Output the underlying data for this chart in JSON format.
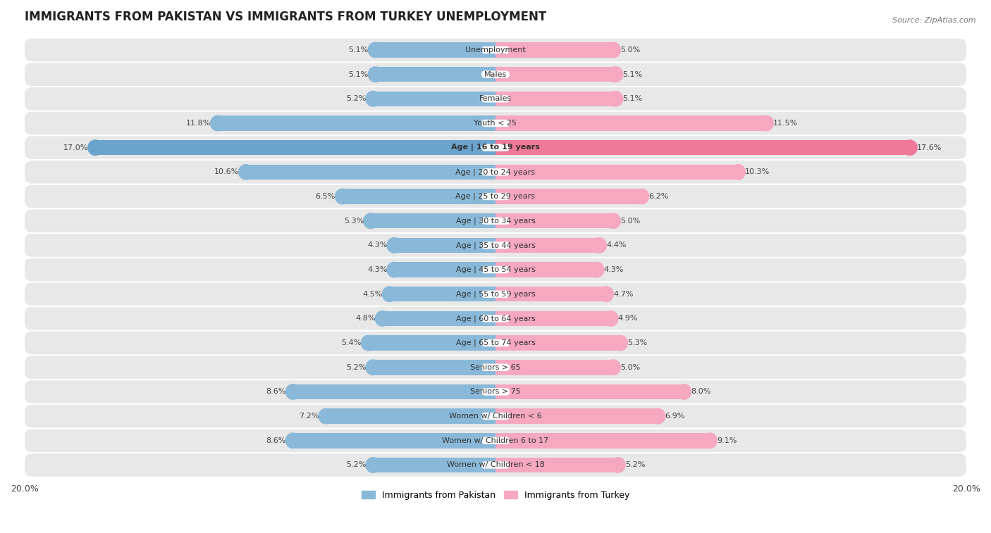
{
  "title": "IMMIGRANTS FROM PAKISTAN VS IMMIGRANTS FROM TURKEY UNEMPLOYMENT",
  "source": "Source: ZipAtlas.com",
  "categories": [
    "Unemployment",
    "Males",
    "Females",
    "Youth < 25",
    "Age | 16 to 19 years",
    "Age | 20 to 24 years",
    "Age | 25 to 29 years",
    "Age | 30 to 34 years",
    "Age | 35 to 44 years",
    "Age | 45 to 54 years",
    "Age | 55 to 59 years",
    "Age | 60 to 64 years",
    "Age | 65 to 74 years",
    "Seniors > 65",
    "Seniors > 75",
    "Women w/ Children < 6",
    "Women w/ Children 6 to 17",
    "Women w/ Children < 18"
  ],
  "pakistan_values": [
    5.1,
    5.1,
    5.2,
    11.8,
    17.0,
    10.6,
    6.5,
    5.3,
    4.3,
    4.3,
    4.5,
    4.8,
    5.4,
    5.2,
    8.6,
    7.2,
    8.6,
    5.2
  ],
  "turkey_values": [
    5.0,
    5.1,
    5.1,
    11.5,
    17.6,
    10.3,
    6.2,
    5.0,
    4.4,
    4.3,
    4.7,
    4.9,
    5.3,
    5.0,
    8.0,
    6.9,
    9.1,
    5.2
  ],
  "pakistan_color": "#89b8d8",
  "turkey_color": "#f5a8c0",
  "pakistan_highlight_color": "#6aa3cc",
  "turkey_highlight_color": "#f07898",
  "highlight_row": 4,
  "max_value": 20.0,
  "legend_pakistan": "Immigrants from Pakistan",
  "legend_turkey": "Immigrants from Turkey",
  "row_bg_color": "#e8e8e8",
  "row_divider_color": "#ffffff",
  "title_fontsize": 12,
  "label_fontsize": 8,
  "value_fontsize": 8
}
